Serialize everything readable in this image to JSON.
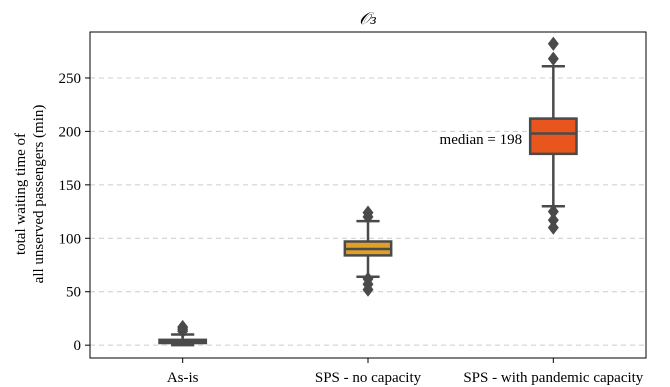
{
  "chart_data": {
    "type": "box",
    "title": "𝒪₃",
    "xlabel": "",
    "ylabel": [
      "total waiting time of",
      "all unserved passengers (min)"
    ],
    "ylim": [
      -12,
      293
    ],
    "yticks": [
      0,
      50,
      100,
      150,
      200,
      250
    ],
    "grid": true,
    "categories": [
      "As-is",
      "SPS - no capacity",
      "SPS - with pandemic capacity"
    ],
    "colors": [
      "#e08020",
      "#e0a028",
      "#e8561e"
    ],
    "boxes": [
      {
        "category": "As-is",
        "whisker_low": 0,
        "q1": 2,
        "median": 3,
        "q3": 5,
        "whisker_high": 10,
        "fliers": [
          13,
          15,
          17
        ]
      },
      {
        "category": "SPS - no capacity",
        "whisker_low": 64,
        "q1": 84,
        "median": 90,
        "q3": 97,
        "whisker_high": 116,
        "fliers": [
          52,
          57,
          62,
          120,
          124
        ]
      },
      {
        "category": "SPS - with pandemic capacity",
        "whisker_low": 130,
        "q1": 179,
        "median": 198,
        "q3": 212,
        "whisker_high": 261,
        "fliers": [
          110,
          117,
          125,
          268,
          282
        ]
      }
    ],
    "annotations": [
      {
        "text": "median = 198",
        "category": "SPS - with pandemic capacity",
        "y": 193
      }
    ]
  }
}
